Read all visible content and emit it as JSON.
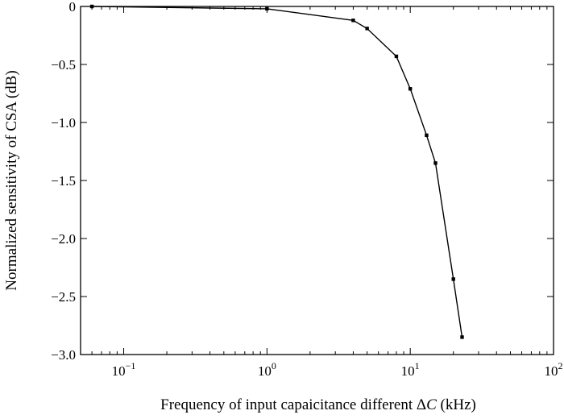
{
  "chart_data": {
    "type": "line",
    "xscale": "log",
    "xlim": [
      0.05,
      100
    ],
    "ylim": [
      -3.0,
      0
    ],
    "xlabel_prefix": "Frequency of input capaicitance different Δ",
    "xlabel_var": "C",
    "xlabel_suffix": " (kHz)",
    "ylabel": "Normalized sensitivity of CSA (dB)",
    "x_ticks": [
      {
        "value": 0.1,
        "base": "10",
        "exp": "−1"
      },
      {
        "value": 1,
        "base": "10",
        "exp": "0"
      },
      {
        "value": 10,
        "base": "10",
        "exp": "1"
      },
      {
        "value": 100,
        "base": "10",
        "exp": "2"
      }
    ],
    "y_ticks": [
      {
        "value": 0,
        "label": "0"
      },
      {
        "value": -0.5,
        "label": "−0.5"
      },
      {
        "value": -1.0,
        "label": "−1.0"
      },
      {
        "value": -1.5,
        "label": "−1.5"
      },
      {
        "value": -2.0,
        "label": "−2.0"
      },
      {
        "value": -2.5,
        "label": "−2.5"
      },
      {
        "value": -3.0,
        "label": "−3.0"
      }
    ],
    "grid": false,
    "series": [
      {
        "x": [
          0.06,
          1,
          4,
          5,
          8,
          10,
          13,
          15,
          20,
          23
        ],
        "y": [
          0,
          -0.02,
          -0.12,
          -0.19,
          -0.43,
          -0.71,
          -1.11,
          -1.35,
          -2.35,
          -2.85
        ]
      }
    ]
  }
}
